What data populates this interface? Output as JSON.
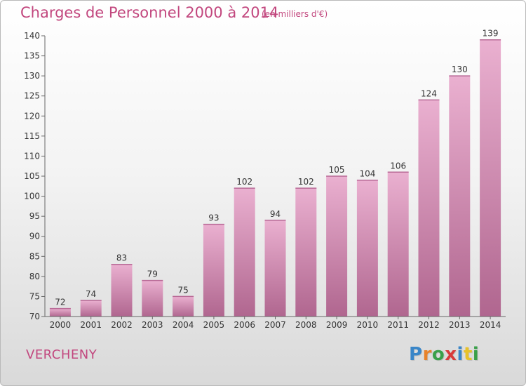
{
  "title": "Charges de Personnel 2000 à 2014",
  "subtitle": "(en milliers d'€)",
  "commune": "VERCHENY",
  "logo": {
    "letters": [
      "P",
      "r",
      "o",
      "x",
      "i",
      "t",
      "i"
    ],
    "colors": [
      "#3a86c8",
      "#e8822a",
      "#3aa04a",
      "#d93a3a",
      "#3a86c8",
      "#e8c22a",
      "#3aa04a"
    ]
  },
  "colors": {
    "bar_light": "#eab0d0",
    "bar_dark": "#b0668f",
    "title": "#c2477e",
    "axis": "#666666"
  },
  "chart_data": {
    "type": "bar",
    "categories": [
      "2000",
      "2001",
      "2002",
      "2003",
      "2004",
      "2005",
      "2006",
      "2007",
      "2008",
      "2009",
      "2010",
      "2011",
      "2012",
      "2013",
      "2014"
    ],
    "values": [
      72,
      74,
      83,
      79,
      75,
      93,
      102,
      94,
      102,
      105,
      104,
      106,
      124,
      130,
      139
    ],
    "data_labels": [
      "72",
      "74",
      "83",
      "79",
      "75",
      "93",
      "102",
      "94",
      "102",
      "105",
      "104",
      "106",
      "124",
      "130",
      "139"
    ],
    "y_ticks": [
      "70",
      "75",
      "80",
      "85",
      "90",
      "95",
      "100",
      "105",
      "110",
      "115",
      "120",
      "125",
      "130",
      "135",
      "140"
    ],
    "ylim": [
      70,
      140
    ],
    "title": "Charges de Personnel 2000 à 2014",
    "subtitle": "(en milliers d'€)",
    "xlabel": "",
    "ylabel": "",
    "grid": false,
    "legend": "none"
  }
}
